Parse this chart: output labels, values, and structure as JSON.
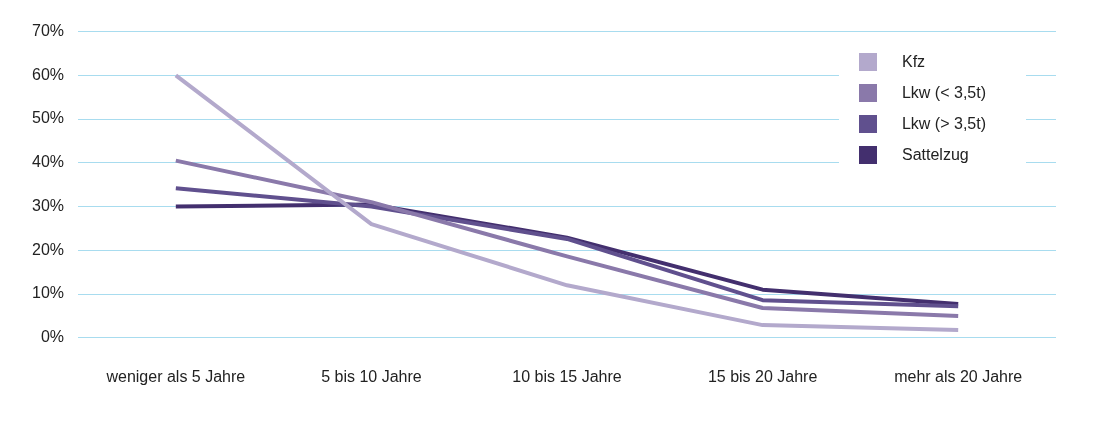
{
  "chart_data": {
    "type": "line",
    "categories": [
      "weniger als 5 Jahre",
      "5 bis 10 Jahre",
      "10 bis 15 Jahre",
      "15 bis 20 Jahre",
      "mehr als 20 Jahre"
    ],
    "series": [
      {
        "name": "Kfz",
        "color": "#b3a9cc",
        "values": [
          60,
          26,
          12,
          2.9,
          1.8
        ]
      },
      {
        "name": "Lkw (< 3,5t)",
        "color": "#8a79aa",
        "values": [
          40.5,
          31,
          18.6,
          6.8,
          5
        ]
      },
      {
        "name": "Lkw (> 3,5t)",
        "color": "#60508e",
        "values": [
          34.2,
          30,
          22.6,
          8.6,
          7.2
        ]
      },
      {
        "name": "Sattelzug",
        "color": "#432f6e",
        "values": [
          30,
          30.5,
          22.9,
          11,
          7.7
        ]
      }
    ],
    "ylim": [
      0,
      70
    ],
    "yticks": [
      {
        "value": 0,
        "label": "0%"
      },
      {
        "value": 10,
        "label": "10%"
      },
      {
        "value": 20,
        "label": "20%"
      },
      {
        "value": 30,
        "label": "30%"
      },
      {
        "value": 40,
        "label": "40%"
      },
      {
        "value": 50,
        "label": "50%"
      },
      {
        "value": 60,
        "label": "60%"
      },
      {
        "value": 70,
        "label": "70%"
      }
    ],
    "grid": "y",
    "legend": "top right",
    "marker": "none",
    "line_style": "solid"
  }
}
